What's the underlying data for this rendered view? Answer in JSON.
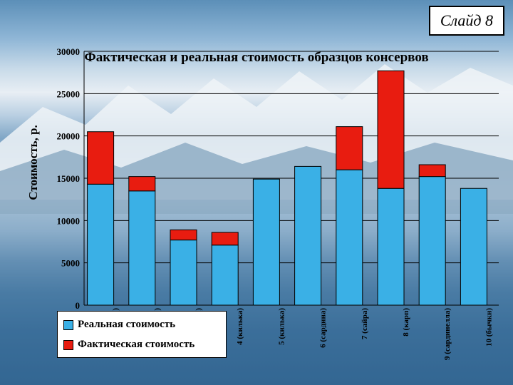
{
  "slide": {
    "label": "Слайд 8"
  },
  "colors": {
    "real": "#3ab0e6",
    "actual": "#e81c10",
    "grid": "#000000"
  },
  "chart_data": {
    "type": "bar",
    "stacked": true,
    "title": "Фактическая и реальная стоимость образцов консервов",
    "ylabel": "Стоимость, р.",
    "xlabel": "",
    "ylim": [
      0,
      30000
    ],
    "yticks": [
      0,
      5000,
      10000,
      15000,
      20000,
      25000,
      30000
    ],
    "grid": true,
    "legend_position": "bottom-left",
    "categories": [
      "1 (шпроты)",
      "2 (лосось)",
      "3 (килька)",
      "4 (килька)",
      "5 (килька)",
      "6 (сардина)",
      "7 (сайра)",
      "8 (карп)",
      "9 (сардинелла)",
      "10 (бычки)"
    ],
    "series": [
      {
        "name": "Реальная стоимость",
        "values": [
          14300,
          13500,
          7700,
          7100,
          14900,
          16400,
          16000,
          13800,
          15200,
          13800
        ]
      },
      {
        "name": "Фактическая стоимость",
        "values": [
          6200,
          1700,
          1200,
          1500,
          0,
          0,
          5100,
          13900,
          1400,
          0
        ]
      }
    ]
  }
}
